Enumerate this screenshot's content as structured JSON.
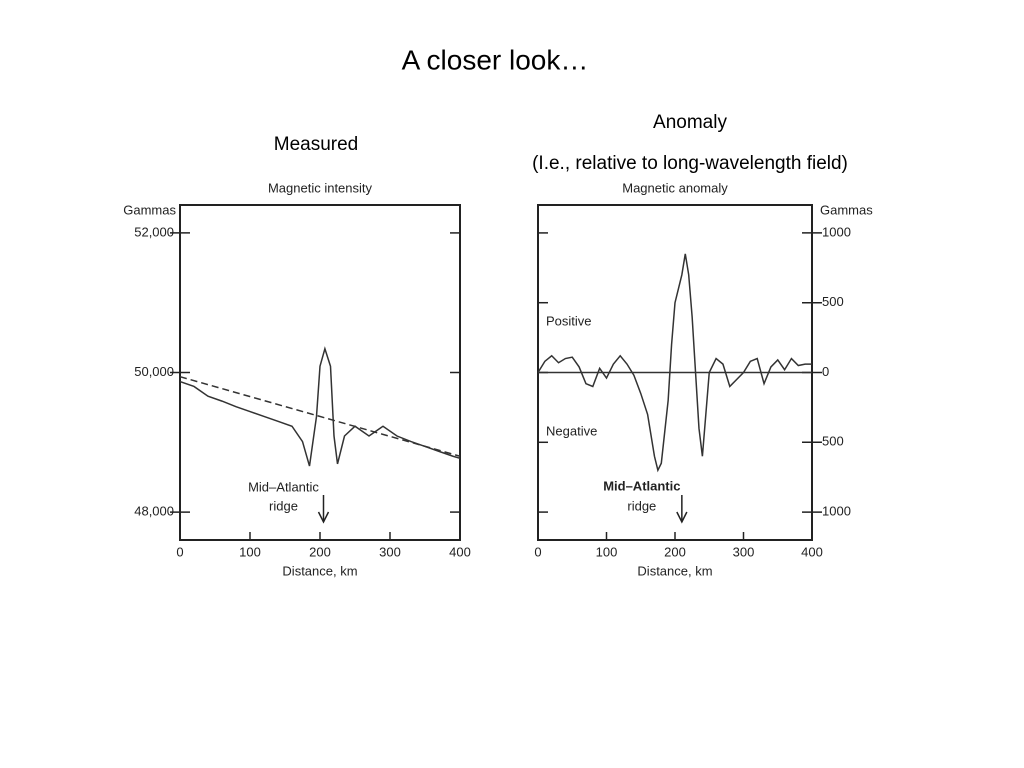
{
  "slide": {
    "title": "A closer look…",
    "left_caption": "Measured",
    "right_caption": "Anomaly",
    "right_subcaption": "(I.e., relative to long-wavelength field)"
  },
  "chart_data": [
    {
      "type": "line",
      "title": "Magnetic intensity",
      "y_label": "Gammas",
      "x_label": "Distance, km",
      "y_axis_side": "left",
      "xlim": [
        0,
        400
      ],
      "xticks": [
        0,
        100,
        200,
        300,
        400
      ],
      "ylim": [
        47600,
        52400
      ],
      "yticks": [
        {
          "value": 48000,
          "label": "48,000"
        },
        {
          "value": 50000,
          "label": "50,000"
        },
        {
          "value": 52000,
          "label": "52,000"
        }
      ],
      "series": [
        {
          "color": "#333333",
          "dash": false,
          "x": [
            0,
            20,
            40,
            60,
            80,
            100,
            120,
            140,
            160,
            175,
            185,
            195,
            200,
            207,
            215,
            220,
            225,
            235,
            250,
            270,
            290,
            310,
            330,
            350,
            370,
            390,
            400
          ],
          "values": [
            49870,
            49800,
            49660,
            49590,
            49510,
            49440,
            49370,
            49300,
            49230,
            49010,
            48660,
            49370,
            50090,
            50340,
            50090,
            49090,
            48690,
            49090,
            49230,
            49090,
            49230,
            49090,
            49010,
            48940,
            48870,
            48800,
            48770
          ]
        },
        {
          "color": "#333333",
          "dash": true,
          "x": [
            0,
            400
          ],
          "values": [
            49940,
            48800
          ]
        }
      ],
      "annotations": [
        {
          "text": "Mid–Atlantic",
          "x": 205
        },
        {
          "text": "ridge",
          "x": 205
        }
      ]
    },
    {
      "type": "line",
      "title": "Magnetic anomaly",
      "y_label": "Gammas",
      "x_label": "Distance, km",
      "y_axis_side": "right",
      "xlim": [
        0,
        400
      ],
      "xticks": [
        0,
        100,
        200,
        300,
        400
      ],
      "ylim": [
        -1200,
        1200
      ],
      "yticks": [
        {
          "value": -1000,
          "label": "1000"
        },
        {
          "value": -500,
          "label": "500"
        },
        0,
        500,
        1000
      ],
      "series": [
        {
          "color": "#333333",
          "dash": false,
          "x": [
            0,
            10,
            20,
            30,
            40,
            50,
            60,
            70,
            80,
            90,
            100,
            110,
            120,
            130,
            140,
            150,
            160,
            170,
            175,
            180,
            190,
            195,
            200,
            210,
            215,
            220,
            225,
            230,
            235,
            240,
            245,
            250,
            260,
            270,
            280,
            290,
            300,
            310,
            320,
            330,
            340,
            350,
            360,
            370,
            380,
            390,
            400
          ],
          "values": [
            0,
            80,
            120,
            70,
            100,
            110,
            40,
            -80,
            -100,
            30,
            -40,
            60,
            120,
            60,
            -20,
            -150,
            -300,
            -600,
            -700,
            -650,
            -200,
            200,
            500,
            700,
            850,
            700,
            400,
            0,
            -400,
            -600,
            -300,
            0,
            100,
            60,
            -100,
            -50,
            0,
            80,
            100,
            -80,
            40,
            90,
            20,
            100,
            50,
            60,
            60
          ]
        },
        {
          "color": "#333333",
          "dash": false,
          "x": [
            0,
            400
          ],
          "values": [
            0,
            0
          ]
        }
      ],
      "annotations": [
        {
          "text": "Positive"
        },
        {
          "text": "Negative"
        },
        {
          "text": "Mid–Atlantic",
          "x": 210
        },
        {
          "text": "ridge",
          "x": 210
        }
      ]
    }
  ]
}
